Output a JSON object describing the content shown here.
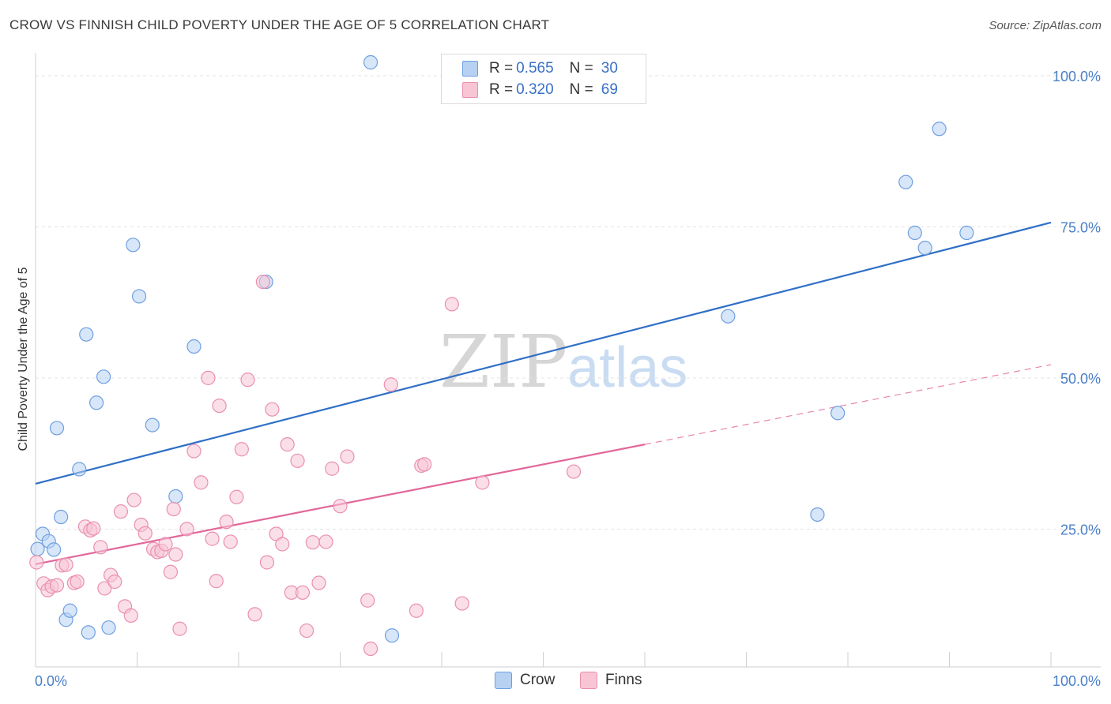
{
  "header": {
    "title": "CROW VS FINNISH CHILD POVERTY UNDER THE AGE OF 5 CORRELATION CHART",
    "source": "Source: ZipAtlas.com"
  },
  "watermark": {
    "zip": "ZIP",
    "atlas": "atlas"
  },
  "legend": {
    "rows": [
      {
        "r_label": "R =",
        "r_value": "0.565",
        "n_label": "N =",
        "n_value": "30",
        "color": "#a9c8f0"
      },
      {
        "r_label": "R =",
        "r_value": "0.320",
        "n_label": "N =",
        "n_value": "69",
        "color": "#f7b6cb"
      }
    ]
  },
  "colors": {
    "crow_fill": "#b7d1f3",
    "crow_stroke": "#6f9fe0",
    "crow_line": "#2f6fc7",
    "finns_fill": "#f8c5d5",
    "finns_stroke": "#ea8fae",
    "finns_line": "#e2679a",
    "grid": "#e3e3e3",
    "tick": "#4a7fc9"
  },
  "chart_data": {
    "type": "scatter",
    "title": "CROW VS FINNISH CHILD POVERTY UNDER THE AGE OF 5 CORRELATION CHART",
    "xlabel": "",
    "ylabel": "Child Poverty Under the Age of 5",
    "xlim": [
      0,
      100
    ],
    "ylim": [
      0,
      100
    ],
    "x_tick_labels": [
      "0.0%",
      "100.0%"
    ],
    "y_tick_labels": [
      "25.0%",
      "50.0%",
      "75.0%",
      "100.0%"
    ],
    "y_ticks": [
      25,
      50,
      75,
      100
    ],
    "grid": true,
    "legend_position": "top-center",
    "series": [
      {
        "name": "Crow",
        "r": 0.565,
        "n": 30,
        "trend": {
          "x": [
            0,
            100
          ],
          "y": [
            30.3,
            73.5
          ],
          "dashed_from": null
        },
        "points": [
          [
            0.2,
            19.5
          ],
          [
            0.7,
            22.0
          ],
          [
            1.3,
            20.8
          ],
          [
            1.8,
            19.4
          ],
          [
            2.1,
            39.5
          ],
          [
            2.5,
            24.8
          ],
          [
            3.0,
            7.8
          ],
          [
            3.4,
            9.3
          ],
          [
            4.3,
            32.7
          ],
          [
            5.0,
            55.0
          ],
          [
            5.2,
            5.7
          ],
          [
            6.0,
            43.7
          ],
          [
            6.7,
            48.0
          ],
          [
            7.2,
            6.5
          ],
          [
            9.6,
            69.8
          ],
          [
            10.2,
            61.3
          ],
          [
            11.5,
            40.0
          ],
          [
            13.8,
            28.2
          ],
          [
            15.6,
            53.0
          ],
          [
            22.7,
            63.7
          ],
          [
            33.0,
            100.0
          ],
          [
            35.1,
            5.2
          ],
          [
            85.7,
            80.2
          ],
          [
            86.6,
            71.8
          ],
          [
            87.6,
            69.3
          ],
          [
            89.0,
            89.0
          ],
          [
            91.7,
            71.8
          ],
          [
            68.2,
            58.0
          ],
          [
            79.0,
            42.0
          ],
          [
            77.0,
            25.2
          ]
        ]
      },
      {
        "name": "Finns",
        "r": 0.32,
        "n": 69,
        "trend": {
          "x": [
            0,
            100
          ],
          "y": [
            17.0,
            50.0
          ],
          "dashed_from": 60
        },
        "points": [
          [
            0.1,
            17.3
          ],
          [
            0.8,
            13.8
          ],
          [
            1.2,
            12.7
          ],
          [
            1.6,
            13.3
          ],
          [
            2.1,
            13.5
          ],
          [
            2.6,
            16.8
          ],
          [
            3.0,
            16.9
          ],
          [
            3.8,
            13.9
          ],
          [
            4.1,
            14.1
          ],
          [
            4.9,
            23.2
          ],
          [
            5.4,
            22.6
          ],
          [
            5.7,
            22.9
          ],
          [
            6.4,
            19.8
          ],
          [
            6.8,
            13.0
          ],
          [
            7.4,
            15.2
          ],
          [
            7.8,
            14.1
          ],
          [
            8.4,
            25.7
          ],
          [
            8.8,
            10.0
          ],
          [
            9.4,
            8.5
          ],
          [
            9.7,
            27.6
          ],
          [
            10.4,
            23.5
          ],
          [
            10.8,
            22.1
          ],
          [
            11.6,
            19.5
          ],
          [
            12.0,
            19.0
          ],
          [
            12.4,
            19.2
          ],
          [
            12.8,
            20.3
          ],
          [
            13.3,
            15.7
          ],
          [
            13.6,
            26.1
          ],
          [
            13.8,
            18.6
          ],
          [
            14.2,
            6.3
          ],
          [
            14.9,
            22.8
          ],
          [
            15.6,
            35.7
          ],
          [
            16.3,
            30.5
          ],
          [
            17.0,
            47.8
          ],
          [
            17.4,
            21.2
          ],
          [
            17.8,
            14.2
          ],
          [
            18.1,
            43.2
          ],
          [
            18.8,
            24.0
          ],
          [
            19.2,
            20.7
          ],
          [
            19.8,
            28.1
          ],
          [
            20.3,
            36.0
          ],
          [
            20.9,
            47.5
          ],
          [
            21.6,
            8.7
          ],
          [
            22.4,
            63.7
          ],
          [
            22.8,
            17.3
          ],
          [
            23.3,
            42.6
          ],
          [
            23.7,
            22.0
          ],
          [
            24.3,
            20.3
          ],
          [
            24.8,
            36.8
          ],
          [
            25.2,
            12.3
          ],
          [
            25.8,
            34.1
          ],
          [
            26.3,
            12.3
          ],
          [
            26.7,
            6.0
          ],
          [
            27.3,
            20.6
          ],
          [
            27.9,
            13.9
          ],
          [
            28.6,
            20.7
          ],
          [
            29.2,
            32.8
          ],
          [
            30.0,
            26.6
          ],
          [
            30.7,
            34.8
          ],
          [
            32.7,
            11.0
          ],
          [
            33.0,
            3.0
          ],
          [
            35.0,
            46.7
          ],
          [
            37.5,
            9.3
          ],
          [
            38.0,
            33.3
          ],
          [
            38.3,
            33.5
          ],
          [
            41.0,
            60.0
          ],
          [
            42.0,
            10.5
          ],
          [
            44.0,
            30.5
          ],
          [
            53.0,
            32.3
          ]
        ]
      }
    ]
  }
}
